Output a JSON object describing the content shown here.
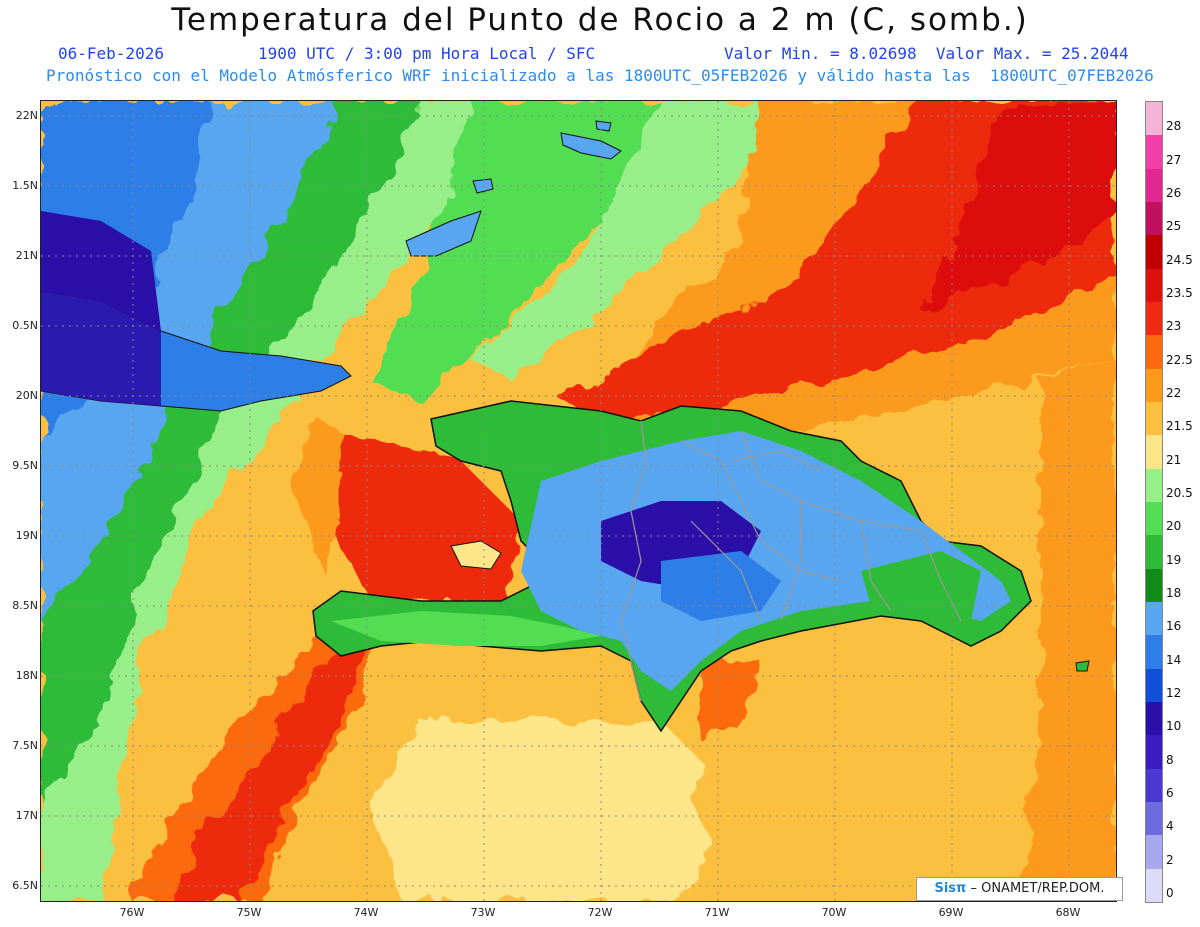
{
  "header": {
    "title": "Temperatura del Punto de Rocio a 2 m (C, somb.)",
    "date": "06-Feb-2026",
    "time": "1900 UTC / 3:00 pm Hora Local / SFC",
    "minmax": "Valor Min. = 8.02698  Valor Max. = 25.2044",
    "model_line": "Pronóstico con el Modelo Atmósferico WRF inicializado a las 1800UTC_05FEB2026 y válido hasta las  1800UTC_07FEB2026"
  },
  "axes": {
    "lat_labels": [
      "22N",
      "1.5N",
      "21N",
      "0.5N",
      "20N",
      "9.5N",
      "19N",
      "8.5N",
      "18N",
      "7.5N",
      "17N",
      "6.5N"
    ],
    "lon_labels": [
      "76W",
      "75W",
      "74W",
      "73W",
      "72W",
      "71W",
      "70W",
      "69W",
      "68W"
    ]
  },
  "colorbar": {
    "labels": [
      "28",
      "27",
      "26",
      "25",
      "24.5",
      "23.5",
      "23",
      "22.5",
      "22",
      "21.5",
      "21",
      "20.5",
      "20",
      "19",
      "18",
      "16",
      "14",
      "12",
      "10",
      "8",
      "6",
      "4",
      "2",
      "0"
    ],
    "colors": [
      "#f4b4d8",
      "#f040a8",
      "#e02890",
      "#c01060",
      "#c00000",
      "#dd1010",
      "#ee2a10",
      "#fb6a10",
      "#fb9a1a",
      "#fcc040",
      "#fde68a",
      "#98ee88",
      "#52dd52",
      "#2ebb38",
      "#108a18",
      "#58a6f0",
      "#2e7ee8",
      "#1050d8",
      "#2a10a8",
      "#3a1cc0",
      "#4a38d0",
      "#6c6ce0",
      "#a8a8ee",
      "#dcdcf8"
    ]
  },
  "credit": {
    "brand": "Sisπ",
    "org": "– ONAMET/REP.DOM."
  }
}
